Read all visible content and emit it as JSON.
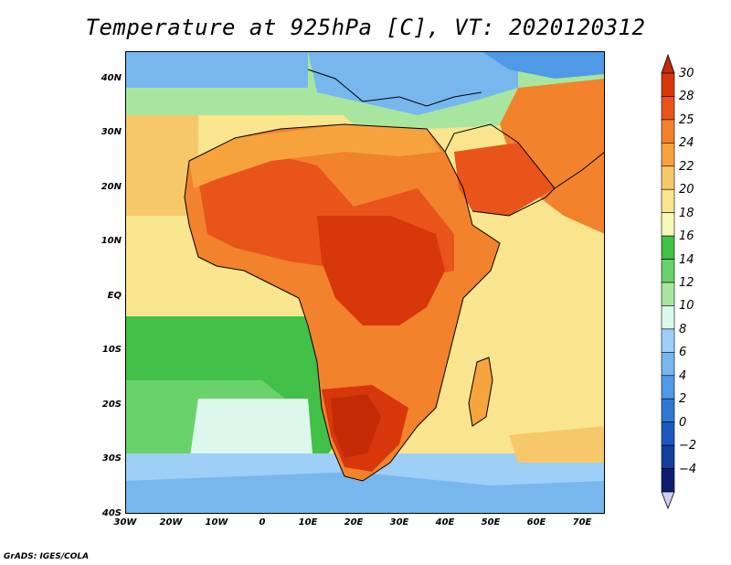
{
  "title": "Temperature at 925hPa [C], VT: 2020120312",
  "credit": "GrADS: IGES/COLA",
  "map": {
    "lon_range": [
      -30,
      75
    ],
    "lat_range": [
      -40,
      45
    ],
    "y_ticks": [
      "40N",
      "30N",
      "20N",
      "10N",
      "EQ",
      "10S",
      "20S",
      "30S",
      "40S"
    ],
    "x_ticks": [
      "30W",
      "20W",
      "10W",
      "0",
      "10E",
      "20E",
      "30E",
      "40E",
      "50E",
      "60E",
      "70E"
    ]
  },
  "colorbar": {
    "labels": [
      "30",
      "28",
      "25",
      "24",
      "22",
      "20",
      "18",
      "16",
      "14",
      "12",
      "10",
      "8",
      "6",
      "4",
      "2",
      "0",
      "−2",
      "−4"
    ],
    "colors": [
      "#d8370b",
      "#e9541b",
      "#f2822c",
      "#f6a33e",
      "#f7c86a",
      "#f9e58e",
      "#f7f7b8",
      "#42c048",
      "#6ad26a",
      "#a8e6a0",
      "#dcf7ec",
      "#9ecff6",
      "#78b7ee",
      "#4f99e6",
      "#2f79d4",
      "#1c58bf",
      "#143e9e",
      "#0e1e6e"
    ],
    "top_arrow_color": "#c22b06",
    "bottom_arrow_color": "#d2cdf2"
  },
  "regions": {
    "sahara_hot": "#e9541b",
    "central_africa": "#d8370b",
    "kalahari": "#c22b06",
    "ocean_warm": "#f7c86a",
    "ocean_mild": "#f9e58e",
    "south_atlantic": "#42c048",
    "cold_south": "#78b7ee",
    "mediterranean": "#a8e6a0",
    "europe": "#78b7ee"
  }
}
